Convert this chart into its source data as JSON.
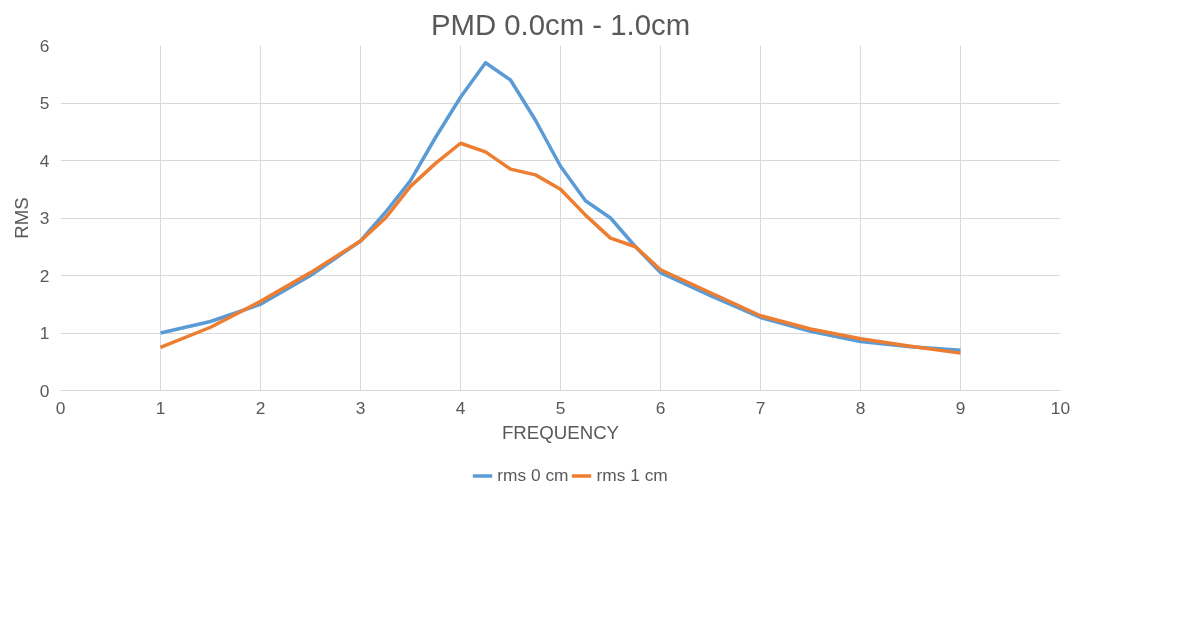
{
  "chart_data": {
    "type": "line",
    "title": "PMD 0.0cm - 1.0cm",
    "xlabel": "FREQUENCY",
    "ylabel": "RMS",
    "x": [
      1,
      1.5,
      2,
      2.5,
      3,
      3.25,
      3.5,
      3.75,
      4,
      4.25,
      4.5,
      4.75,
      5,
      5.25,
      5.5,
      5.75,
      6,
      6.5,
      7,
      7.5,
      8,
      8.5,
      9
    ],
    "series": [
      {
        "name": "rms 0 cm",
        "color": "#5b9bd5",
        "values": [
          1.0,
          1.2,
          1.5,
          2.0,
          2.6,
          3.1,
          3.65,
          4.4,
          5.1,
          5.7,
          5.4,
          4.7,
          3.9,
          3.3,
          3.0,
          2.5,
          2.05,
          1.65,
          1.27,
          1.03,
          0.85,
          0.76,
          0.7
        ]
      },
      {
        "name": "rms 1 cm",
        "color": "#ed7d31",
        "values": [
          0.75,
          1.1,
          1.55,
          2.05,
          2.6,
          3.0,
          3.55,
          3.95,
          4.3,
          4.15,
          3.85,
          3.75,
          3.5,
          3.05,
          2.65,
          2.5,
          2.1,
          1.7,
          1.3,
          1.07,
          0.9,
          0.77,
          0.65
        ]
      }
    ],
    "xlim": [
      0,
      10
    ],
    "xticks": [
      0,
      1,
      2,
      3,
      4,
      5,
      6,
      7,
      8,
      9,
      10
    ],
    "ylim": [
      0,
      6
    ],
    "yticks": [
      0,
      1,
      2,
      3,
      4,
      5,
      6
    ],
    "grid": true,
    "legend": "bottom"
  }
}
